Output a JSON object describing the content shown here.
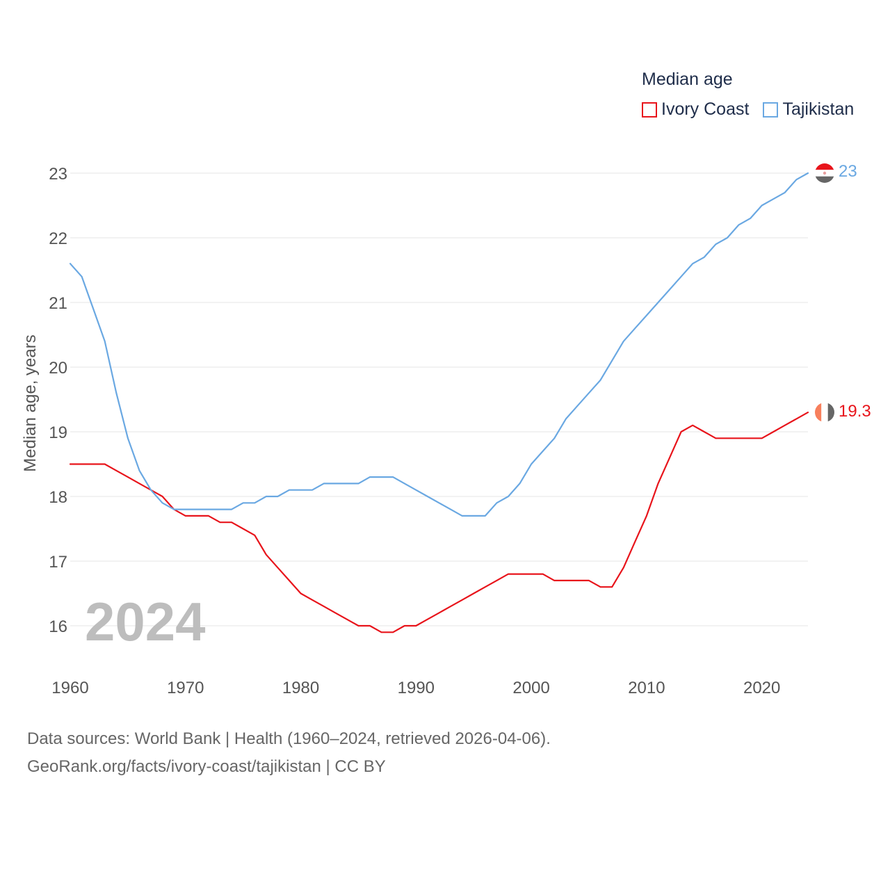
{
  "legend": {
    "title": "Median age",
    "items": [
      {
        "label": "Ivory Coast",
        "color": "#e8141b"
      },
      {
        "label": "Tajikistan",
        "color": "#6aa8e2"
      }
    ]
  },
  "chart_data": {
    "type": "line",
    "title": "Median age",
    "xlabel": "",
    "ylabel": "Median age, years",
    "xlim": [
      1960,
      2024
    ],
    "ylim": [
      15.5,
      23.5
    ],
    "x_ticks": [
      1960,
      1970,
      1980,
      1990,
      2000,
      2010,
      2020
    ],
    "y_ticks": [
      16,
      17,
      18,
      19,
      20,
      21,
      22,
      23
    ],
    "grid": true,
    "year_overlay": "2024",
    "series": [
      {
        "name": "Ivory Coast",
        "color": "#e8141b",
        "end_label": "19.3",
        "x": [
          1960,
          1961,
          1962,
          1963,
          1964,
          1965,
          1966,
          1967,
          1968,
          1969,
          1970,
          1971,
          1972,
          1973,
          1974,
          1975,
          1976,
          1977,
          1978,
          1979,
          1980,
          1981,
          1982,
          1983,
          1984,
          1985,
          1986,
          1987,
          1988,
          1989,
          1990,
          1991,
          1992,
          1993,
          1994,
          1995,
          1996,
          1997,
          1998,
          1999,
          2000,
          2001,
          2002,
          2003,
          2004,
          2005,
          2006,
          2007,
          2008,
          2009,
          2010,
          2011,
          2012,
          2013,
          2014,
          2015,
          2016,
          2017,
          2018,
          2019,
          2020,
          2021,
          2022,
          2023,
          2024
        ],
        "y": [
          18.5,
          18.5,
          18.5,
          18.5,
          18.4,
          18.3,
          18.2,
          18.1,
          18.0,
          17.8,
          17.7,
          17.7,
          17.7,
          17.6,
          17.6,
          17.5,
          17.4,
          17.1,
          16.9,
          16.7,
          16.5,
          16.4,
          16.3,
          16.2,
          16.1,
          16.0,
          16.0,
          15.9,
          15.9,
          16.0,
          16.0,
          16.1,
          16.2,
          16.3,
          16.4,
          16.5,
          16.6,
          16.7,
          16.8,
          16.8,
          16.8,
          16.8,
          16.7,
          16.7,
          16.7,
          16.7,
          16.6,
          16.6,
          16.9,
          17.3,
          17.7,
          18.2,
          18.6,
          19.0,
          19.1,
          19.0,
          18.9,
          18.9,
          18.9,
          18.9,
          18.9,
          19.0,
          19.1,
          19.2,
          19.3
        ]
      },
      {
        "name": "Tajikistan",
        "color": "#6aa8e2",
        "end_label": "23",
        "x": [
          1960,
          1961,
          1962,
          1963,
          1964,
          1965,
          1966,
          1967,
          1968,
          1969,
          1970,
          1971,
          1972,
          1973,
          1974,
          1975,
          1976,
          1977,
          1978,
          1979,
          1980,
          1981,
          1982,
          1983,
          1984,
          1985,
          1986,
          1987,
          1988,
          1989,
          1990,
          1991,
          1992,
          1993,
          1994,
          1995,
          1996,
          1997,
          1998,
          1999,
          2000,
          2001,
          2002,
          2003,
          2004,
          2005,
          2006,
          2007,
          2008,
          2009,
          2010,
          2011,
          2012,
          2013,
          2014,
          2015,
          2016,
          2017,
          2018,
          2019,
          2020,
          2021,
          2022,
          2023,
          2024
        ],
        "y": [
          21.6,
          21.4,
          20.9,
          20.4,
          19.6,
          18.9,
          18.4,
          18.1,
          17.9,
          17.8,
          17.8,
          17.8,
          17.8,
          17.8,
          17.8,
          17.9,
          17.9,
          18.0,
          18.0,
          18.1,
          18.1,
          18.1,
          18.2,
          18.2,
          18.2,
          18.2,
          18.3,
          18.3,
          18.3,
          18.2,
          18.1,
          18.0,
          17.9,
          17.8,
          17.7,
          17.7,
          17.7,
          17.9,
          18.0,
          18.2,
          18.5,
          18.7,
          18.9,
          19.2,
          19.4,
          19.6,
          19.8,
          20.1,
          20.4,
          20.6,
          20.8,
          21.0,
          21.2,
          21.4,
          21.6,
          21.7,
          21.9,
          22.0,
          22.2,
          22.3,
          22.5,
          22.6,
          22.7,
          22.9,
          23.0
        ]
      }
    ]
  },
  "source": {
    "line1": "Data sources: World Bank | Health (1960–2024, retrieved 2026-04-06).",
    "line2": "GeoRank.org/facts/ivory-coast/tajikistan | CC BY"
  }
}
